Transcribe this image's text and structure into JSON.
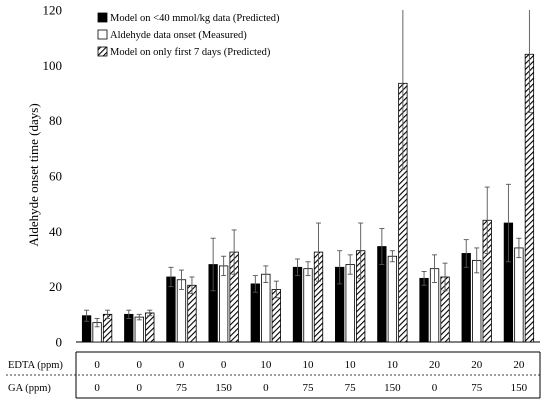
{
  "chart_data": {
    "type": "bar",
    "ylabel": "Aldehyde onset time (days)",
    "ylim": [
      0,
      120
    ],
    "yticks": [
      0,
      20,
      40,
      60,
      80,
      100,
      120
    ],
    "grid": false,
    "legend_position": "top-left",
    "categories": [
      {
        "edta": "0",
        "ga": "0"
      },
      {
        "edta": "0",
        "ga": "0"
      },
      {
        "edta": "0",
        "ga": "75"
      },
      {
        "edta": "0",
        "ga": "150"
      },
      {
        "edta": "10",
        "ga": "0"
      },
      {
        "edta": "10",
        "ga": "75"
      },
      {
        "edta": "10",
        "ga": "75"
      },
      {
        "edta": "10",
        "ga": "150"
      },
      {
        "edta": "20",
        "ga": "0"
      },
      {
        "edta": "20",
        "ga": "75"
      },
      {
        "edta": "20",
        "ga": "150"
      }
    ],
    "table_rows": [
      {
        "label": "EDTA (ppm)",
        "key": "edta"
      },
      {
        "label": "GA (ppm)",
        "key": "ga"
      }
    ],
    "series": [
      {
        "name": "Model on <40 mmol/kg data (Predicted)",
        "style": "solid",
        "color": "#000000",
        "values": [
          9.5,
          10,
          23.5,
          28,
          21,
          27,
          27,
          34.5,
          23,
          32,
          43
        ],
        "errors": [
          2,
          1.5,
          3.5,
          9.5,
          3,
          3,
          6,
          6.5,
          2.5,
          5,
          14
        ]
      },
      {
        "name": "Aldehyde data onset (Measured)",
        "style": "open",
        "color": "#ffffff",
        "values": [
          7,
          9,
          22.5,
          27.5,
          24.5,
          26.5,
          28,
          31,
          26.5,
          29.5,
          34
        ],
        "errors": [
          1.5,
          1,
          3.5,
          3.5,
          3,
          2.5,
          3.5,
          2,
          5,
          4.5,
          3.5
        ]
      },
      {
        "name": "Model on only first 7 days (Predicted)",
        "style": "hatched",
        "color": "#000000",
        "values": [
          10,
          10.5,
          20.5,
          32.5,
          19,
          32.5,
          33,
          93.5,
          23.5,
          44,
          104
        ],
        "errors": [
          1.5,
          1,
          3,
          8,
          3,
          10.5,
          10,
          31,
          5,
          12,
          21
        ]
      }
    ]
  }
}
